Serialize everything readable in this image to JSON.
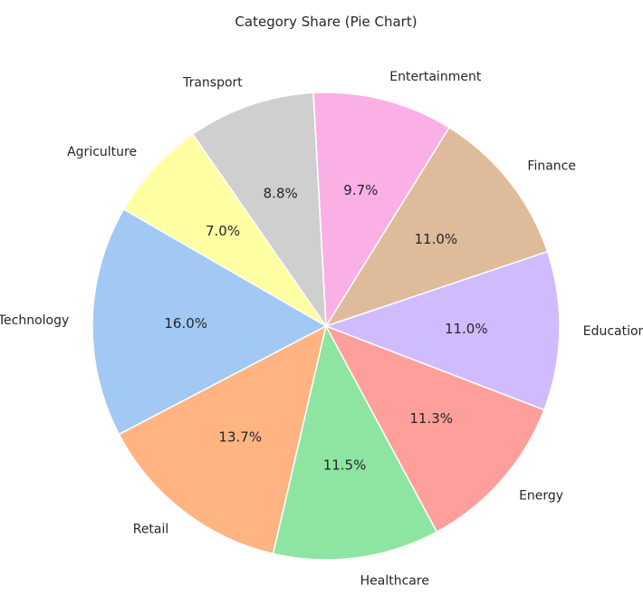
{
  "chart_data": {
    "type": "pie",
    "title": "Category Share (Pie Chart)",
    "start_angle_deg": 150,
    "direction": "counterclockwise",
    "slices": [
      {
        "label": "Technology",
        "value": 16.0,
        "pct_text": "16.0%",
        "color": "#a1c9f4"
      },
      {
        "label": "Retail",
        "value": 13.7,
        "pct_text": "13.7%",
        "color": "#ffb482"
      },
      {
        "label": "Healthcare",
        "value": 11.5,
        "pct_text": "11.5%",
        "color": "#8de5a1"
      },
      {
        "label": "Energy",
        "value": 11.3,
        "pct_text": "11.3%",
        "color": "#ff9f9b"
      },
      {
        "label": "Education",
        "value": 11.0,
        "pct_text": "11.0%",
        "color": "#d0bbff"
      },
      {
        "label": "Finance",
        "value": 11.0,
        "pct_text": "11.0%",
        "color": "#debb9b"
      },
      {
        "label": "Entertainment",
        "value": 9.7,
        "pct_text": "9.7%",
        "color": "#fab0e4"
      },
      {
        "label": "Transport",
        "value": 8.8,
        "pct_text": "8.8%",
        "color": "#cfcfcf"
      },
      {
        "label": "Agriculture",
        "value": 7.0,
        "pct_text": "7.0%",
        "color": "#fffea3"
      }
    ]
  }
}
